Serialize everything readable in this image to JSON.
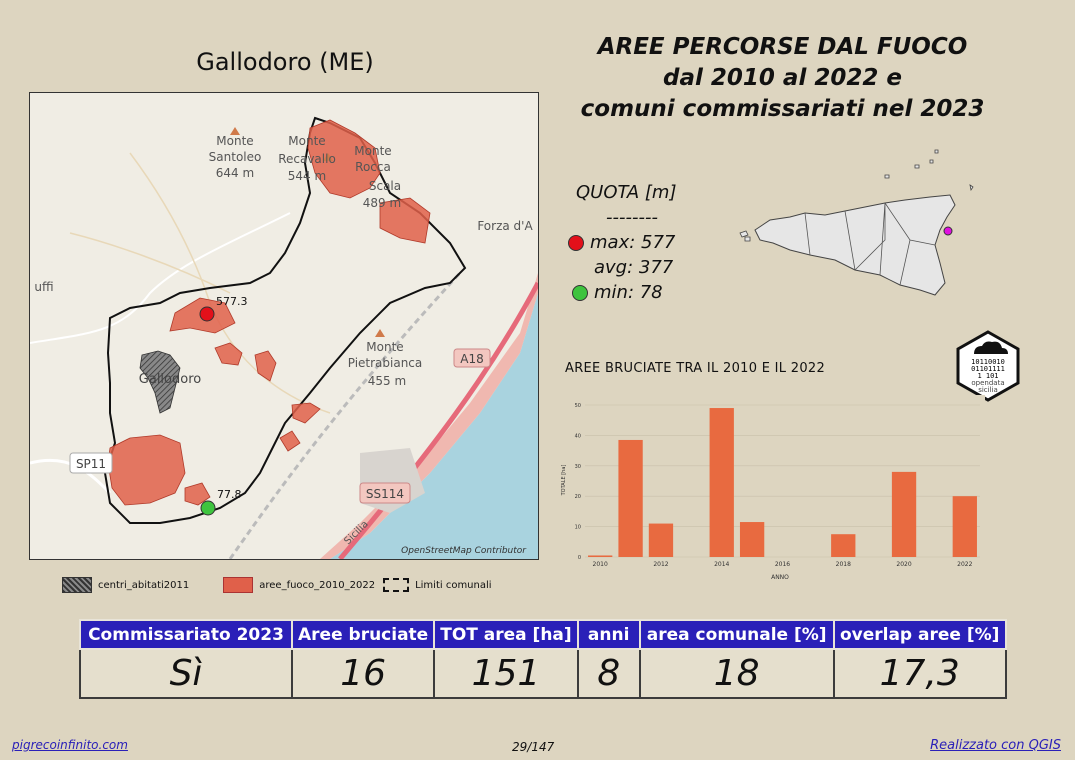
{
  "map": {
    "title": "Gallodoro (ME)",
    "labels": {
      "peak1": "Monte",
      "peak1b": "Santoleo",
      "peak1c": "644 m",
      "peak2": "Monte",
      "peak2b": "Recavallo",
      "peak2c": "544 m",
      "peak3": "Monte",
      "peak3b": "Rocca",
      "peak3c": "Scala",
      "peak3d": "489 m",
      "peak4": "Monte",
      "peak4b": "Pietrabianca",
      "peak4c": "455 m",
      "town": "Gallodoro",
      "forza": "Forza d'A",
      "uffi": "uffi",
      "a18": "A18",
      "sp11": "SP11",
      "ss114": "SS114",
      "sicilia": "Sicilia",
      "max_pt": "577.3",
      "min_pt": "77.8"
    },
    "credit": "OpenStreetMap Contributor"
  },
  "main_title": {
    "line1": "AREE PERCORSE DAL FUOCO",
    "line2": "dal 2010 al 2022 e",
    "line3": "comuni commissariati nel 2023"
  },
  "quota": {
    "title": "QUOTA [m]",
    "sep": "--------",
    "max": "max: 577",
    "avg": "avg: 377",
    "min": "min: 78"
  },
  "colors": {
    "fire": "#e0604a",
    "max": "#e3101a",
    "min": "#3ec43e",
    "header": "#2a20b8",
    "bar": "#e86a40"
  },
  "logo": {
    "line1": "10110010",
    "line2": "01101111",
    "line3": "1  101",
    "line4": "opendata",
    "line5": "sicilia"
  },
  "chart_title": "AREE BRUCIATE TRA IL 2010 E IL 2022",
  "chart_data": {
    "type": "bar",
    "categories": [
      2010,
      2011,
      2012,
      2013,
      2014,
      2015,
      2016,
      2017,
      2018,
      2019,
      2020,
      2021,
      2022
    ],
    "values": [
      0.5,
      38.5,
      11,
      0,
      49,
      11.5,
      0,
      0,
      7.5,
      0,
      28,
      0,
      20
    ],
    "xticks": [
      "2010",
      "2012",
      "2014",
      "2016",
      "2018",
      "2020",
      "2022"
    ],
    "yticks": [
      "0",
      "10",
      "20",
      "30",
      "40",
      "50"
    ],
    "ylim": [
      0,
      50
    ],
    "xlabel": "ANNO",
    "ylabel": "TOTALE [ha]"
  },
  "legend": {
    "centri": "centri_abitati2011",
    "aree": "aree_fuoco_2010_2022",
    "limiti": "Limiti comunali"
  },
  "stats": {
    "headers": [
      "Commissariato 2023",
      "Aree bruciate",
      "TOT area [ha]",
      "anni",
      "area comunale [%]",
      "overlap aree [%]"
    ],
    "values": [
      "Sì",
      "16",
      "151",
      "8",
      "18",
      "17,3"
    ]
  },
  "footer": {
    "left": "pigrecoinfinito.com",
    "center": "29/147",
    "right": "Realizzato con QGIS"
  }
}
